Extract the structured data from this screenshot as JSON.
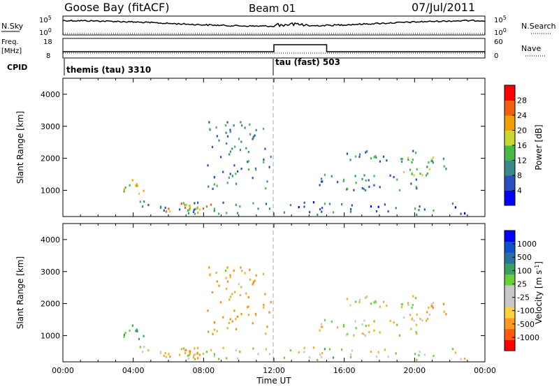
{
  "header": {
    "station": "Goose Bay (fitACF)",
    "beam": "Beam 01",
    "date": "07/Jul/2011"
  },
  "noise_panel": {
    "left_label": "N.Sky",
    "right_label": "N.Search",
    "tick_top": "10^5",
    "tick_bottom": "10^0"
  },
  "freq_panel": {
    "left_label_1": "Freq.",
    "left_label_2": "[MHz]",
    "left_tick_top": "18",
    "left_tick_bottom": "8",
    "right_label": "Nave",
    "right_tick_top": "60",
    "right_tick_bottom": "0"
  },
  "cpid": {
    "label": "CPID",
    "mode_1": "themis (tau) 3310",
    "mode_2": "tau (fast) 503"
  },
  "colors": {
    "axis": "#000000",
    "power_scale": [
      "#0000ff",
      "#2b4fbf",
      "#3a8a8a",
      "#47b84a",
      "#c8d830",
      "#f0a000",
      "#f06010",
      "#ff0000"
    ],
    "velocity_scale": [
      "#ff0000",
      "#ff5a10",
      "#ff9a20",
      "#ffd040",
      "#c8c8c8",
      "#c8c8c8",
      "#6ad03a",
      "#3aa060",
      "#2a70a0",
      "#1050d0",
      "#0000ff"
    ]
  },
  "chart_data": [
    {
      "type": "heatmap",
      "title": "Power",
      "ylabel": "Slant Range [km]",
      "xlabel": "",
      "xlim": [
        "00:00",
        "24:00"
      ],
      "ylim": [
        180,
        4500
      ],
      "yticks": [
        "1000",
        "2000",
        "3000",
        "4000"
      ],
      "colorbar_label": "Power [dB]",
      "colorbar_ticks": [
        "4",
        "8",
        "12",
        "16",
        "20",
        "24",
        "28"
      ],
      "colorbar_range": [
        0,
        30
      ],
      "echo_regions": [
        {
          "t0": 3.0,
          "t1": 4.6,
          "r0": 850,
          "r1": 1350,
          "density": 0.55,
          "level": 18
        },
        {
          "t0": 4.0,
          "t1": 12.0,
          "r0": 200,
          "r1": 650,
          "density": 0.45,
          "level": 10
        },
        {
          "t0": 5.5,
          "t1": 8.5,
          "r0": 250,
          "r1": 550,
          "density": 0.7,
          "level": 20
        },
        {
          "t0": 8.2,
          "t1": 11.8,
          "r0": 900,
          "r1": 3100,
          "density": 0.3,
          "level": 9
        },
        {
          "t0": 9.2,
          "t1": 10.5,
          "r0": 2000,
          "r1": 3000,
          "density": 0.45,
          "level": 12
        },
        {
          "t0": 12.0,
          "t1": 23.0,
          "r0": 200,
          "r1": 600,
          "density": 0.35,
          "level": 7
        },
        {
          "t0": 14.5,
          "t1": 20.5,
          "r0": 950,
          "r1": 1450,
          "density": 0.5,
          "level": 9
        },
        {
          "t0": 16.0,
          "t1": 20.5,
          "r0": 1800,
          "r1": 2200,
          "density": 0.55,
          "level": 10
        },
        {
          "t0": 19.0,
          "t1": 21.8,
          "r0": 1400,
          "r1": 2000,
          "density": 0.6,
          "level": 13
        }
      ]
    },
    {
      "type": "heatmap",
      "title": "Velocity",
      "ylabel": "Slant Range [km]",
      "xlabel": "Time UT",
      "xlim": [
        "00:00",
        "24:00"
      ],
      "xticks": [
        "00:00",
        "04:00",
        "08:00",
        "12:00",
        "16:00",
        "20:00",
        "00:00"
      ],
      "ylim": [
        180,
        4500
      ],
      "yticks": [
        "1000",
        "2000",
        "3000",
        "4000"
      ],
      "colorbar_label": "Velocity [m s^-1]",
      "colorbar_ticks": [
        "1000",
        "500",
        "100",
        "25",
        "-25",
        "-100",
        "-500",
        "-1000"
      ],
      "echo_regions": [
        {
          "t0": 3.0,
          "t1": 4.6,
          "r0": 850,
          "r1": 1350,
          "density": 0.55,
          "vel": 150
        },
        {
          "t0": 4.0,
          "t1": 12.0,
          "r0": 200,
          "r1": 650,
          "density": 0.45,
          "vel": 0
        },
        {
          "t0": 5.5,
          "t1": 8.5,
          "r0": 250,
          "r1": 550,
          "density": 0.7,
          "vel": -120
        },
        {
          "t0": 8.2,
          "t1": 11.8,
          "r0": 900,
          "r1": 3100,
          "density": 0.3,
          "vel": -150
        },
        {
          "t0": 9.2,
          "t1": 10.5,
          "r0": 2000,
          "r1": 3000,
          "density": 0.45,
          "vel": 0
        },
        {
          "t0": 12.0,
          "t1": 23.0,
          "r0": 200,
          "r1": 600,
          "density": 0.35,
          "vel": 20
        },
        {
          "t0": 14.5,
          "t1": 20.5,
          "r0": 950,
          "r1": 1450,
          "density": 0.5,
          "vel": 0
        },
        {
          "t0": 16.0,
          "t1": 20.5,
          "r0": 1800,
          "r1": 2200,
          "density": 0.55,
          "vel": 0
        },
        {
          "t0": 19.0,
          "t1": 21.8,
          "r0": 1400,
          "r1": 2000,
          "density": 0.6,
          "vel": -80
        }
      ]
    }
  ]
}
